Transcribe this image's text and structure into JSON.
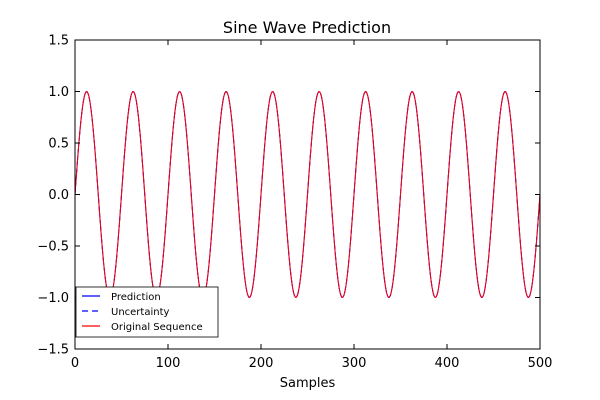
{
  "chart_data": {
    "type": "line",
    "title": "Sine Wave Prediction",
    "xlabel": "Samples",
    "ylabel": "",
    "xlim": [
      0,
      500
    ],
    "ylim": [
      -1.5,
      1.5
    ],
    "xticks": [
      0,
      100,
      200,
      300,
      400,
      500
    ],
    "yticks": [
      -1.5,
      -1.0,
      -0.5,
      0.0,
      0.5,
      1.0,
      1.5
    ],
    "xtick_labels": [
      "0",
      "100",
      "200",
      "300",
      "400",
      "500"
    ],
    "ytick_labels": [
      "−1.5",
      "−1.0",
      "−0.5",
      "0.0",
      "0.5",
      "1.0",
      "1.5"
    ],
    "grid": false,
    "legend_position": "lower-left",
    "function": {
      "form": "sin",
      "amplitude": 1.0,
      "period": 50,
      "phase": 0,
      "x_start": 0,
      "x_end": 500,
      "x_step": 1
    },
    "series": [
      {
        "name": "Prediction",
        "style": "solid",
        "color": "#0000ff"
      },
      {
        "name": "Uncertainty",
        "style": "dashed",
        "color": "#0000ff"
      },
      {
        "name": "Original Sequence",
        "style": "solid",
        "color": "#ff0000"
      }
    ]
  }
}
